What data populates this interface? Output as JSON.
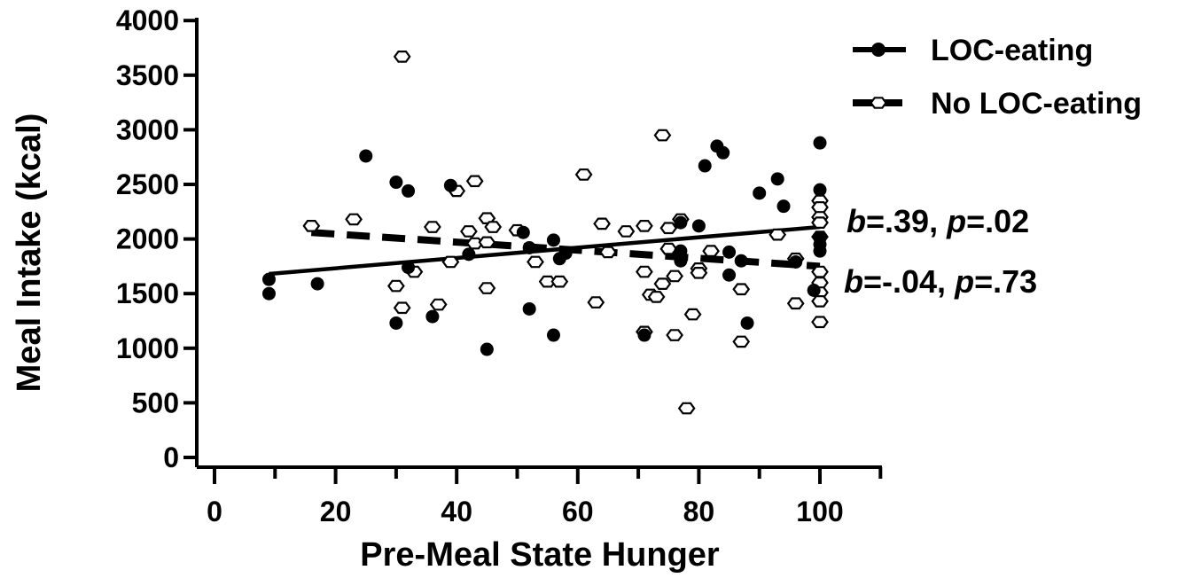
{
  "chart_data": {
    "type": "scatter",
    "xlabel": "Pre-Meal State Hunger",
    "ylabel": "Meal Intake (kcal)",
    "xlim": [
      -3,
      110
    ],
    "ylim": [
      -100,
      4000
    ],
    "x_ticks": [
      0,
      20,
      40,
      60,
      80,
      100
    ],
    "y_ticks": [
      0,
      500,
      1000,
      1500,
      2000,
      2500,
      3000,
      3500,
      4000
    ],
    "legend_position": "top-right",
    "grid": false,
    "series": [
      {
        "name": "LOC-eating",
        "marker": "filled-circle",
        "line": "solid",
        "color": "#000000",
        "fit": {
          "x": [
            9,
            100
          ],
          "y": [
            1680,
            2110
          ]
        },
        "annotation": {
          "b_symbol": "b",
          "b_value": "=.39, ",
          "p_symbol": "p",
          "p_value": "=.02"
        },
        "points": [
          [
            9,
            1630
          ],
          [
            9,
            1500
          ],
          [
            17,
            1590
          ],
          [
            25,
            2760
          ],
          [
            30,
            2520
          ],
          [
            30,
            1230
          ],
          [
            32,
            2440
          ],
          [
            32,
            1740
          ],
          [
            36,
            1290
          ],
          [
            39,
            2490
          ],
          [
            42,
            1860
          ],
          [
            45,
            990
          ],
          [
            51,
            2060
          ],
          [
            52,
            1920
          ],
          [
            52,
            1360
          ],
          [
            56,
            1990
          ],
          [
            56,
            1120
          ],
          [
            57,
            1820
          ],
          [
            58,
            1870
          ],
          [
            71,
            1120
          ],
          [
            77,
            2150
          ],
          [
            77,
            1890
          ],
          [
            77,
            1800
          ],
          [
            80,
            2120
          ],
          [
            81,
            2670
          ],
          [
            83,
            2850
          ],
          [
            84,
            2790
          ],
          [
            85,
            1880
          ],
          [
            85,
            1670
          ],
          [
            87,
            1800
          ],
          [
            88,
            1230
          ],
          [
            90,
            2420
          ],
          [
            93,
            2550
          ],
          [
            94,
            2300
          ],
          [
            96,
            1790
          ],
          [
            99,
            1530
          ],
          [
            100,
            2880
          ],
          [
            100,
            2450
          ],
          [
            100,
            2010
          ],
          [
            100,
            1950
          ],
          [
            100,
            1890
          ]
        ]
      },
      {
        "name": "No LOC-eating",
        "marker": "open-hexagon",
        "line": "dashed",
        "color": "#000000",
        "fit": {
          "x": [
            16,
            100
          ],
          "y": [
            2060,
            1750
          ]
        },
        "annotation": {
          "b_symbol": "b",
          "b_value": "=-.04, ",
          "p_symbol": "p",
          "p_value": "=.73"
        },
        "points": [
          [
            16,
            2120
          ],
          [
            23,
            2180
          ],
          [
            30,
            1570
          ],
          [
            31,
            3670
          ],
          [
            31,
            1370
          ],
          [
            33,
            1700
          ],
          [
            36,
            2110
          ],
          [
            37,
            1400
          ],
          [
            39,
            1790
          ],
          [
            40,
            2440
          ],
          [
            42,
            2070
          ],
          [
            43,
            2530
          ],
          [
            43,
            1960
          ],
          [
            45,
            2190
          ],
          [
            45,
            1970
          ],
          [
            45,
            1550
          ],
          [
            46,
            2110
          ],
          [
            50,
            2080
          ],
          [
            53,
            1790
          ],
          [
            55,
            1610
          ],
          [
            57,
            1610
          ],
          [
            61,
            2590
          ],
          [
            63,
            1420
          ],
          [
            64,
            2140
          ],
          [
            65,
            1880
          ],
          [
            68,
            2070
          ],
          [
            71,
            2120
          ],
          [
            71,
            1700
          ],
          [
            71,
            1150
          ],
          [
            72,
            1490
          ],
          [
            73,
            1470
          ],
          [
            74,
            2950
          ],
          [
            74,
            1590
          ],
          [
            75,
            2100
          ],
          [
            75,
            1910
          ],
          [
            76,
            1660
          ],
          [
            76,
            1120
          ],
          [
            77,
            2180
          ],
          [
            78,
            450
          ],
          [
            79,
            1310
          ],
          [
            80,
            1730
          ],
          [
            80,
            1690
          ],
          [
            82,
            1890
          ],
          [
            87,
            1540
          ],
          [
            87,
            1060
          ],
          [
            93,
            2040
          ],
          [
            96,
            1820
          ],
          [
            96,
            1410
          ],
          [
            100,
            2350
          ],
          [
            100,
            2290
          ],
          [
            100,
            2200
          ],
          [
            100,
            2150
          ],
          [
            100,
            2020
          ],
          [
            100,
            1700
          ],
          [
            100,
            1600
          ],
          [
            100,
            1510
          ],
          [
            100,
            1430
          ],
          [
            100,
            1240
          ]
        ]
      }
    ]
  }
}
